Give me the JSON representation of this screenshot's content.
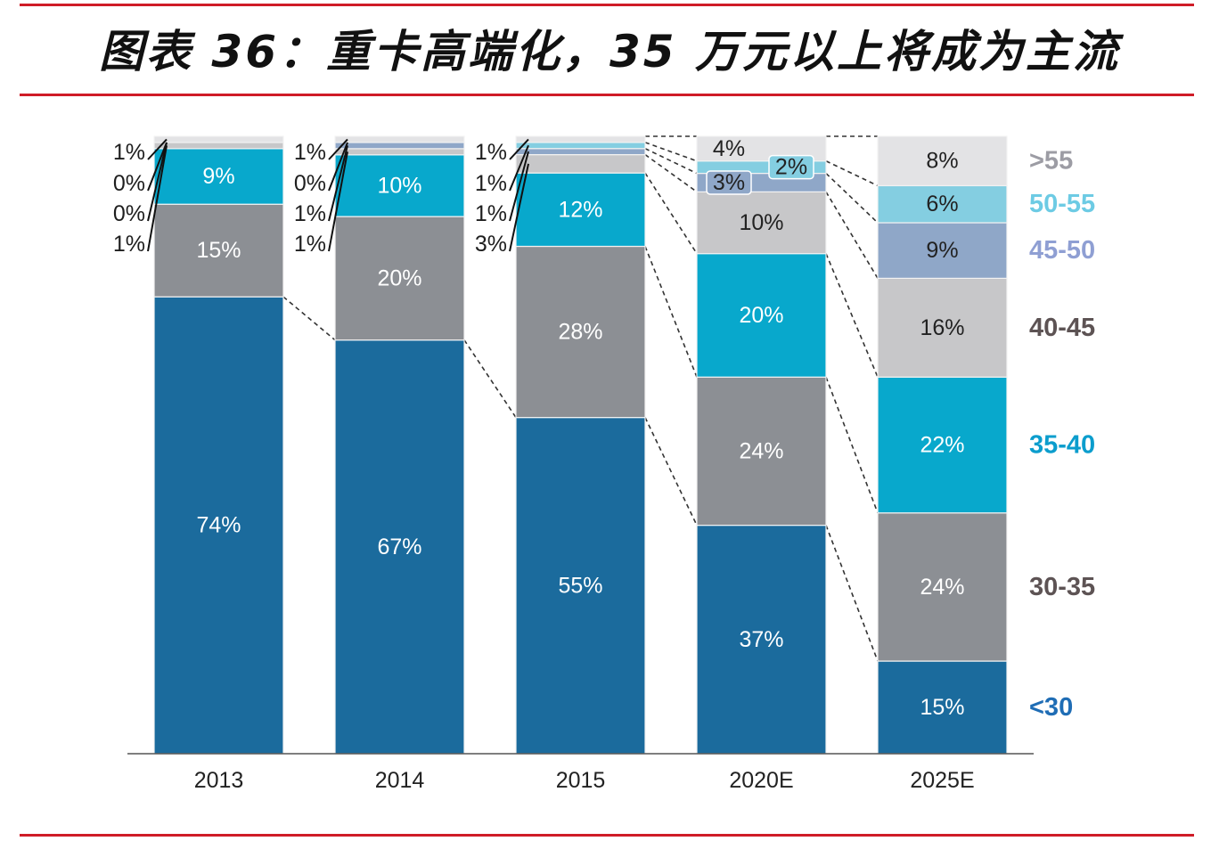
{
  "chart_data": {
    "type": "bar",
    "stacked": true,
    "title": "图表 36：重卡高端化，35 万元以上将成为主流",
    "ylim": [
      0,
      100
    ],
    "categories": [
      "2013",
      "2014",
      "2015",
      "2020E",
      "2025E"
    ],
    "series": [
      {
        "name": "<30",
        "values": [
          74,
          67,
          55,
          37,
          15
        ],
        "labels": [
          "74%",
          "67%",
          "55%",
          "37%",
          "15%"
        ],
        "color": "#1b6b9d",
        "text_color": "#ffffff",
        "legend_color": "#1f6db5"
      },
      {
        "name": "30-35",
        "values": [
          15,
          20,
          28,
          24,
          24
        ],
        "labels": [
          "15%",
          "20%",
          "28%",
          "24%",
          "24%"
        ],
        "color": "#8c8f94",
        "text_color": "#ffffff",
        "legend_color": "#5d5354"
      },
      {
        "name": "35-40",
        "values": [
          9,
          10,
          12,
          20,
          22
        ],
        "labels": [
          "9%",
          "10%",
          "12%",
          "20%",
          "22%"
        ],
        "color": "#08a8cc",
        "text_color": "#ffffff",
        "legend_color": "#0b9dcd"
      },
      {
        "name": "40-45",
        "values": [
          1,
          1,
          3,
          10,
          16
        ],
        "labels": [
          "1%",
          "1%",
          "3%",
          "10%",
          "16%"
        ],
        "color": "#c7c7c9",
        "text_color": "#222222",
        "legend_color": "#5d5354"
      },
      {
        "name": "45-50",
        "values": [
          0,
          1,
          1,
          3,
          9
        ],
        "labels": [
          "0%",
          "1%",
          "1%",
          "3%",
          "9%"
        ],
        "color": "#8fa7c8",
        "text_color": "#222222",
        "legend_color": "#8f9fd3"
      },
      {
        "name": "50-55",
        "values": [
          0,
          0,
          1,
          2,
          6
        ],
        "labels": [
          "0%",
          "0%",
          "1%",
          "2%",
          "6%"
        ],
        "color": "#84cee1",
        "text_color": "#222222",
        "legend_color": "#6dcbe4"
      },
      {
        "name": ">55",
        "values": [
          1,
          1,
          1,
          4,
          8
        ],
        "labels": [
          "1%",
          "1%",
          "1%",
          "4%",
          "8%"
        ],
        "color": "#e3e3e5",
        "text_color": "#222222",
        "legend_color": "#9c9ca4"
      }
    ]
  }
}
